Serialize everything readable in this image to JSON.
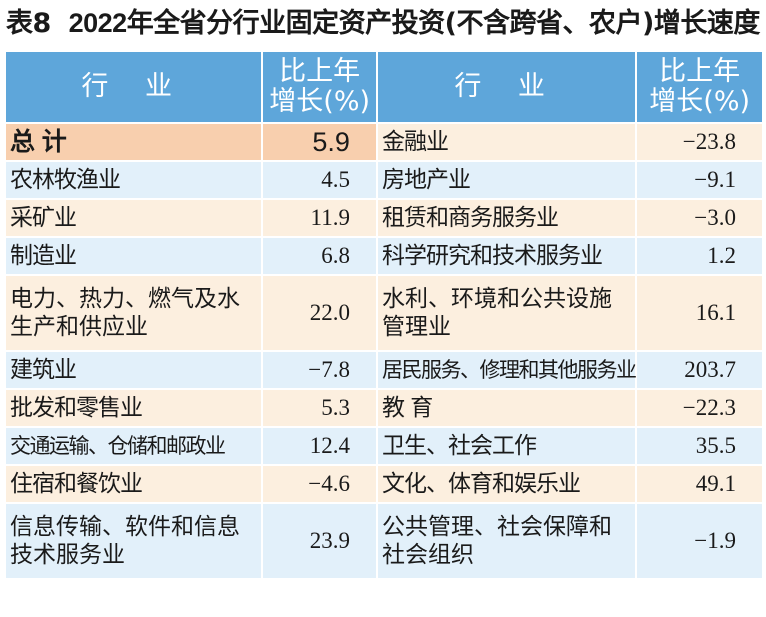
{
  "title": {
    "prefix": "表8",
    "year": "2022",
    "text": "年全省分行业固定资产投资(不含跨省、农户)增长速度"
  },
  "headers": {
    "industry": "行 业",
    "growth_line1": "比上年",
    "growth_line2": "增长(%)"
  },
  "rows": [
    {
      "l_name": "总 计",
      "l_val": "5.9",
      "r_name": "金融业",
      "r_val": "−23.8"
    },
    {
      "l_name": "农林牧渔业",
      "l_val": "4.5",
      "r_name": "房地产业",
      "r_val": "−9.1"
    },
    {
      "l_name": "采矿业",
      "l_val": "11.9",
      "r_name": "租赁和商务服务业",
      "r_val": "−3.0"
    },
    {
      "l_name": "制造业",
      "l_val": "6.8",
      "r_name": "科学研究和技术服务业",
      "r_val": "1.2"
    },
    {
      "l_name": "电力、热力、燃气及水生产和供应业",
      "l_val": "22.0",
      "r_name": "水利、环境和公共设施管理业",
      "r_val": "16.1"
    },
    {
      "l_name": "建筑业",
      "l_val": "−7.8",
      "r_name": "居民服务、修理和其他服务业",
      "r_val": "203.7"
    },
    {
      "l_name": "批发和零售业",
      "l_val": "5.3",
      "r_name": "教 育",
      "r_val": "−22.3"
    },
    {
      "l_name": "交通运输、仓储和邮政业",
      "l_val": "12.4",
      "r_name": "卫生、社会工作",
      "r_val": "35.5"
    },
    {
      "l_name": "住宿和餐饮业",
      "l_val": "−4.6",
      "r_name": "文化、体育和娱乐业",
      "r_val": "49.1"
    },
    {
      "l_name": "信息传输、软件和信息技术服务业",
      "l_val": "23.9",
      "r_name": "公共管理、社会保障和社会组织",
      "r_val": "−1.9"
    }
  ]
}
